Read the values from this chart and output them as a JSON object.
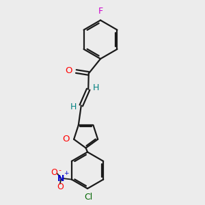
{
  "background_color": "#ececec",
  "bond_color": "#1a1a1a",
  "F_color": "#cc00cc",
  "O_color": "#ff0000",
  "N_color": "#0000cc",
  "Cl_color": "#006600",
  "H_color": "#008080",
  "figsize": [
    3.0,
    3.0
  ],
  "dpi": 100,
  "xlim": [
    0,
    10
  ],
  "ylim": [
    0,
    10
  ]
}
